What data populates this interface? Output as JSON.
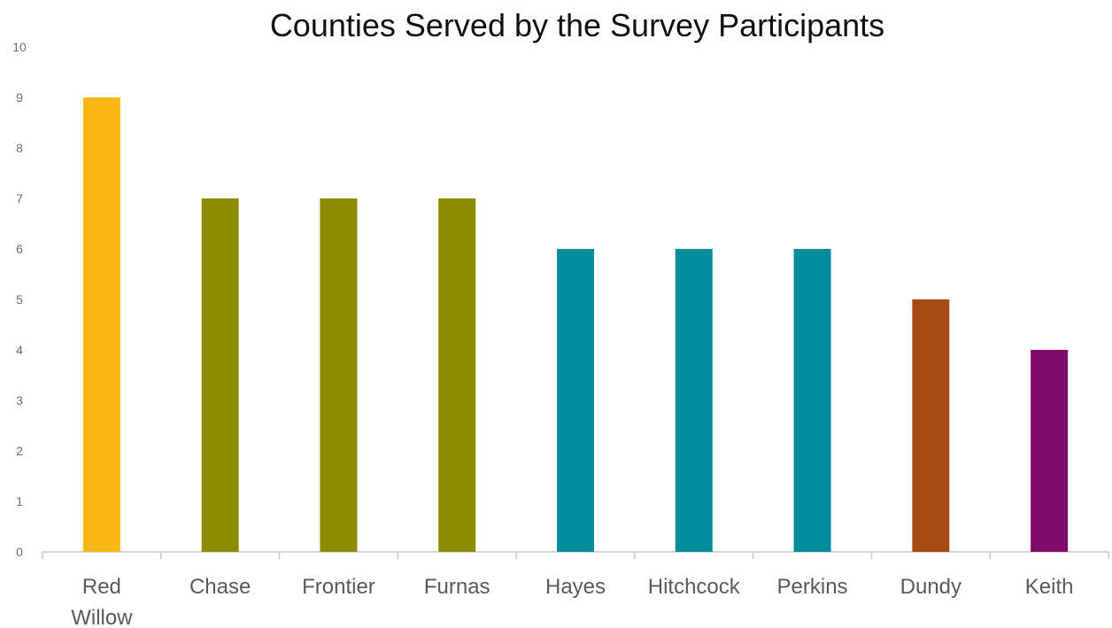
{
  "chart_data": {
    "type": "bar",
    "title": "Counties Served by the Survey Participants",
    "xlabel": "",
    "ylabel": "",
    "categories": [
      [
        "Red",
        "Willow"
      ],
      [
        "Chase"
      ],
      [
        "Frontier"
      ],
      [
        "Furnas"
      ],
      [
        "Hayes"
      ],
      [
        "Hitchcock"
      ],
      [
        "Perkins"
      ],
      [
        "Dundy"
      ],
      [
        "Keith"
      ]
    ],
    "values": [
      9,
      7,
      7,
      7,
      6,
      6,
      6,
      5,
      4
    ],
    "colors": [
      "#FBB714",
      "#8C8C00",
      "#8C8C00",
      "#8C8C00",
      "#008C9A",
      "#008C9A",
      "#008C9A",
      "#A64C12",
      "#7D0C6A"
    ],
    "ylim": [
      0,
      10
    ],
    "yticks": [
      0,
      1,
      2,
      3,
      4,
      5,
      6,
      7,
      8,
      9,
      10
    ],
    "grid": false,
    "legend": "none"
  }
}
